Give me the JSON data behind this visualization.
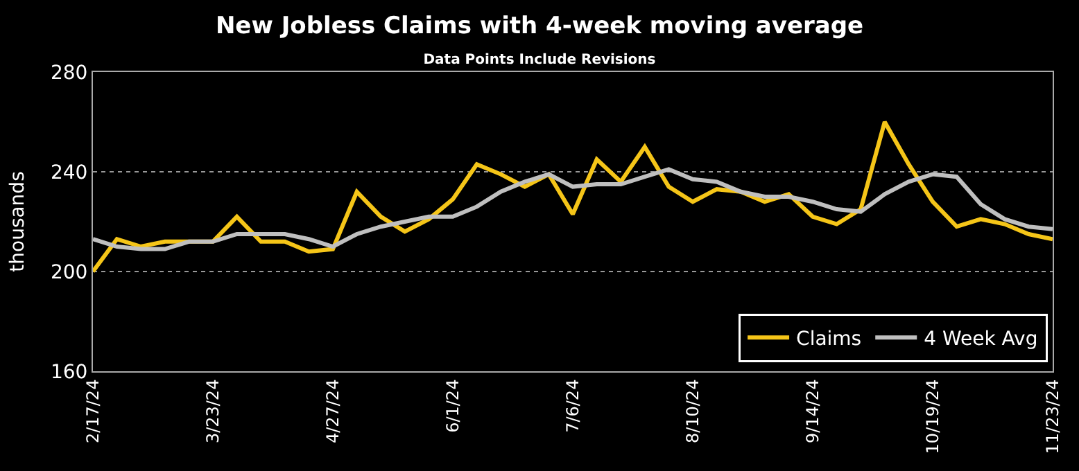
{
  "chart_data": {
    "type": "line",
    "title": "New Jobless Claims with 4-week moving average",
    "subtitle": "Data Points Include Revisions",
    "ylabel": "thousands",
    "categories": [
      "2/17/24",
      null,
      null,
      null,
      null,
      "3/23/24",
      null,
      null,
      null,
      null,
      "4/27/24",
      null,
      null,
      null,
      null,
      "6/1/24",
      null,
      null,
      null,
      null,
      "7/6/24",
      null,
      null,
      null,
      null,
      "8/10/24",
      null,
      null,
      null,
      null,
      "9/14/24",
      null,
      null,
      null,
      null,
      "10/19/24",
      null,
      null,
      null,
      null,
      "11/23/24"
    ],
    "series": [
      {
        "name": "Claims",
        "color": "#f5c518",
        "values": [
          200,
          213,
          210,
          212,
          212,
          212,
          222,
          212,
          212,
          208,
          209,
          232,
          222,
          216,
          221,
          229,
          243,
          239,
          234,
          239,
          223,
          245,
          236,
          250,
          234,
          228,
          233,
          232,
          228,
          231,
          222,
          219,
          225,
          260,
          243,
          228,
          218,
          221,
          219,
          215,
          213
        ]
      },
      {
        "name": "4 Week Avg",
        "color": "#bfbfbf",
        "values": [
          213,
          210,
          209,
          209,
          212,
          212,
          215,
          215,
          215,
          213,
          210,
          215,
          218,
          220,
          222,
          222,
          226,
          232,
          236,
          239,
          234,
          235,
          235,
          238,
          241,
          237,
          236,
          232,
          230,
          230,
          228,
          225,
          224,
          231,
          236,
          239,
          238,
          227,
          221,
          218,
          217
        ]
      }
    ],
    "ylim": [
      160,
      280
    ],
    "yticks": [
      160,
      200,
      240,
      280
    ],
    "grid": "y",
    "legend": "bottom right",
    "marker": "none",
    "line_style": "solid"
  }
}
